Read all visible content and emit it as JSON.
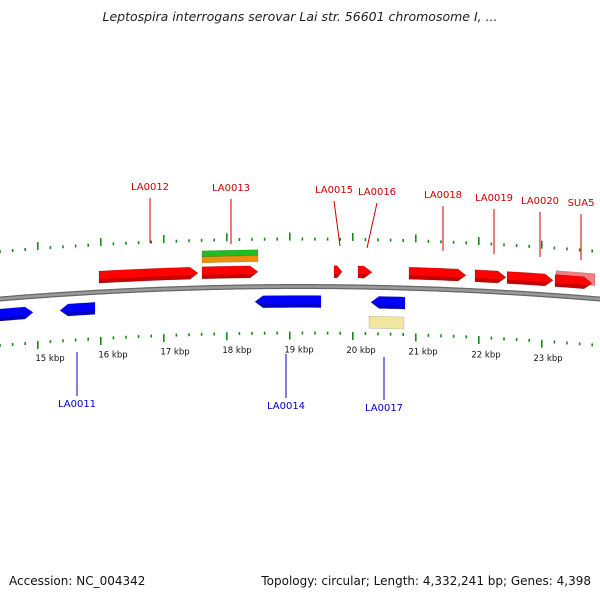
{
  "title": "Leptospira interrogans serovar Lai str. 56601 chromosome I, ...",
  "footer": {
    "accession": "Accession: NC_004342",
    "summary": "Topology: circular; Length: 4,332,241 bp; Genes: 4,398"
  },
  "colors": {
    "forward_gene": "#ff0000",
    "reverse_gene": "#0000ff",
    "forward_label": "#cc0000",
    "reverse_label": "#0000cc",
    "tick": "#1a8a1a",
    "backbone": "#808080",
    "green_feature": "#22bb22",
    "orange_feature": "#f0900a",
    "pink_feature": "#f08080",
    "yellow_feature": "#f0e6a0"
  },
  "scale": {
    "unit": "kbp",
    "labels": [
      "15 kbp",
      "16 kbp",
      "17 kbp",
      "18 kbp",
      "19 kbp",
      "20 kbp",
      "21 kbp",
      "22 kbp",
      "23 kbp"
    ]
  },
  "genes": [
    {
      "id": "LA0011",
      "strand": "reverse",
      "label": "LA0011"
    },
    {
      "id": "LA0012",
      "strand": "forward",
      "label": "LA0012"
    },
    {
      "id": "LA0013",
      "strand": "forward",
      "label": "LA0013"
    },
    {
      "id": "LA0014",
      "strand": "reverse",
      "label": "LA0014"
    },
    {
      "id": "LA0015",
      "strand": "forward",
      "label": "LA0015"
    },
    {
      "id": "LA0016",
      "strand": "forward",
      "label": "LA0016"
    },
    {
      "id": "LA0017",
      "strand": "reverse",
      "label": "LA0017"
    },
    {
      "id": "LA0018",
      "strand": "forward",
      "label": "LA0018"
    },
    {
      "id": "LA0019",
      "strand": "forward",
      "label": "LA0019"
    },
    {
      "id": "LA0020",
      "strand": "forward",
      "label": "LA0020"
    },
    {
      "id": "SUA5",
      "strand": "forward",
      "label": "SUA5"
    }
  ]
}
